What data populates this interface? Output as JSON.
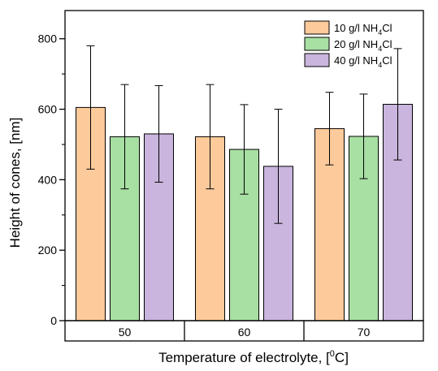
{
  "chart_data": {
    "type": "bar",
    "title": "",
    "xlabel": "Temperature of electrolyte, [",
    "xlabel_sup": "0",
    "xlabel_suffix": "C]",
    "ylabel": "Height of cones, [nm]",
    "ylim": [
      0,
      880
    ],
    "yticks": [
      0,
      200,
      400,
      600,
      800
    ],
    "categories": [
      "50",
      "60",
      "70"
    ],
    "legend_position": "top-right",
    "series": [
      {
        "name": "10 g/l NH4Cl",
        "legend_main": "10 g/l NH",
        "legend_sub": "4",
        "legend_suffix": "Cl",
        "color": "#FDCA9B",
        "values": [
          605,
          522,
          545
        ],
        "errors": [
          175,
          148,
          103
        ]
      },
      {
        "name": "20 g/l NH4Cl",
        "legend_main": "20 g/l NH",
        "legend_sub": "4",
        "legend_suffix": "Cl",
        "color": "#A8DFA3",
        "values": [
          522,
          486,
          523
        ],
        "errors": [
          148,
          127,
          120
        ]
      },
      {
        "name": "40 g/l NH4Cl",
        "legend_main": "40 g/l NH",
        "legend_sub": "4",
        "legend_suffix": "Cl",
        "color": "#C9B5DD",
        "values": [
          530,
          438,
          614
        ],
        "errors": [
          137,
          162,
          158
        ]
      }
    ]
  }
}
